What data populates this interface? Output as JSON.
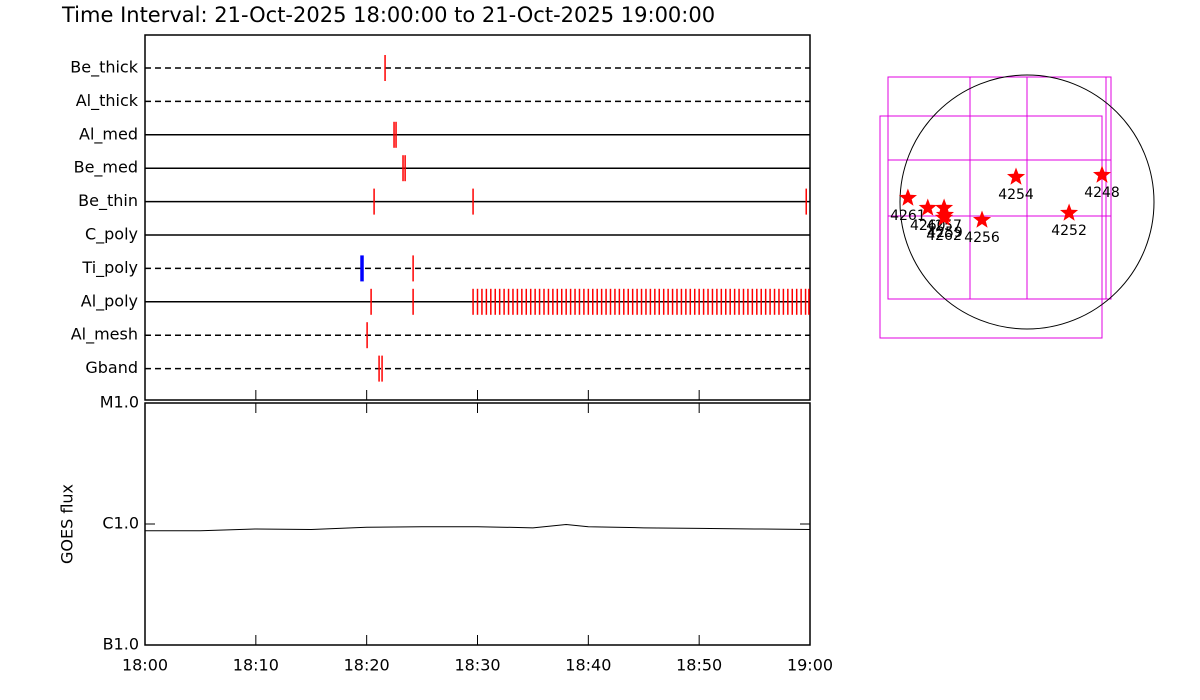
{
  "chart_data": [
    {
      "type": "timeline",
      "title": "Time Interval: 21-Oct-2025 18:00:00 to 21-Oct-2025 19:00:00",
      "xlim": [
        0,
        60
      ],
      "series": [
        {
          "name": "Be_thick",
          "linestyle": "dashed",
          "color": "#ff0000",
          "values": [
            21.66
          ]
        },
        {
          "name": "Al_thick",
          "linestyle": "dashed",
          "color": "#ff0000",
          "values": []
        },
        {
          "name": "Al_med",
          "linestyle": "solid",
          "color": "#ff0000",
          "values": [
            22.47,
            22.65
          ]
        },
        {
          "name": "Be_med",
          "linestyle": "solid",
          "color": "#ff0000",
          "values": [
            23.28,
            23.47
          ]
        },
        {
          "name": "Be_thin",
          "linestyle": "solid",
          "color": "#ff0000",
          "values": [
            20.67,
            29.6,
            59.66
          ]
        },
        {
          "name": "C_poly",
          "linestyle": "solid",
          "color": "#ff0000",
          "values": []
        },
        {
          "name": "Ti_poly",
          "linestyle": "dashed",
          "color": "#ff0000",
          "colors": [
            "#0000ff",
            "#ff0000"
          ],
          "values": [
            19.58,
            24.19
          ]
        },
        {
          "name": "Al_poly",
          "linestyle": "solid",
          "color": "#ff0000",
          "values": [
            20.4,
            24.19,
            29.6,
            30.0,
            30.4,
            30.8,
            31.2,
            31.6,
            32.0,
            32.4,
            32.8,
            33.2,
            33.6,
            34.0,
            34.4,
            34.8,
            35.2,
            35.6,
            36.0,
            36.4,
            36.8,
            37.2,
            37.6,
            38.0,
            38.4,
            38.8,
            39.2,
            39.6,
            40.0,
            40.4,
            40.8,
            41.2,
            41.6,
            42.0,
            42.4,
            42.8,
            43.2,
            43.6,
            44.0,
            44.4,
            44.8,
            45.2,
            45.6,
            46.0,
            46.4,
            46.8,
            47.2,
            47.6,
            48.0,
            48.4,
            48.8,
            49.2,
            49.6,
            50.0,
            50.4,
            50.8,
            51.2,
            51.6,
            52.0,
            52.4,
            52.8,
            53.2,
            53.6,
            54.0,
            54.4,
            54.8,
            55.2,
            55.6,
            56.0,
            56.4,
            56.8,
            57.2,
            57.6,
            58.0,
            58.4,
            58.8,
            59.2,
            59.6,
            59.9
          ]
        },
        {
          "name": "Al_mesh",
          "linestyle": "dashed",
          "color": "#ff0000",
          "values": [
            20.04
          ]
        },
        {
          "name": "Gband",
          "linestyle": "dashed",
          "color": "#ff0000",
          "values": [
            21.12,
            21.39
          ]
        }
      ]
    },
    {
      "type": "line",
      "ylabel": "GOES flux",
      "log": true,
      "xlim": [
        0,
        60
      ],
      "xticks": [
        {
          "value": 0,
          "label": "18:00"
        },
        {
          "value": 10,
          "label": "18:10"
        },
        {
          "value": 20,
          "label": "18:20"
        },
        {
          "value": 30,
          "label": "18:30"
        },
        {
          "value": 40,
          "label": "18:40"
        },
        {
          "value": 50,
          "label": "18:50"
        },
        {
          "value": 60,
          "label": "19:00"
        }
      ],
      "ylim": [
        1e-07,
        1e-05
      ],
      "yticks": [
        {
          "value": 1e-05,
          "label": "M1.0"
        },
        {
          "value": 1e-06,
          "label": "C1.0"
        },
        {
          "value": 1e-07,
          "label": "B1.0"
        }
      ],
      "x": [
        0,
        5,
        10,
        15,
        20,
        25,
        30,
        35,
        38,
        40,
        45,
        50,
        55,
        60
      ],
      "values": [
        8.8e-07,
        8.8e-07,
        9.1e-07,
        9e-07,
        9.4e-07,
        9.5e-07,
        9.5e-07,
        9.3e-07,
        9.9e-07,
        9.5e-07,
        9.3e-07,
        9.2e-07,
        9.1e-07,
        9e-07
      ],
      "color": "#000000"
    },
    {
      "type": "map",
      "color": "#ff0000",
      "labels": [
        "4261",
        "4260",
        "4257",
        "4262",
        "4259",
        "4256",
        "4254",
        "4252",
        "4248"
      ],
      "x": [
        -900,
        -750,
        -627,
        -627,
        -620,
        -340,
        -83,
        318,
        567
      ],
      "y": [
        30,
        -45,
        -45,
        -120,
        -98,
        -136,
        189,
        -83,
        204
      ]
    }
  ]
}
